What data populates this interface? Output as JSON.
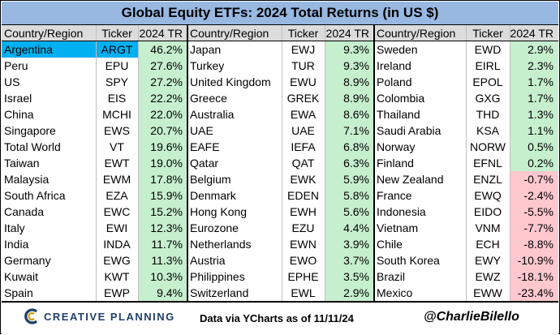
{
  "title": "Global Equity ETFs: 2024 Total Returns (in US $)",
  "headers": {
    "country": "Country/Region",
    "ticker": "Ticker",
    "tr": "2024 TR"
  },
  "footer": {
    "brand": "CREATIVE PLANNING",
    "source": "Data via YCharts as of 11/11/24",
    "handle": "@CharlieBilello"
  },
  "colors": {
    "positive_fill": "#c6efce",
    "negative_fill": "#ffc7ce",
    "highlight_fill": "#00b0f0",
    "title_fill": "#98b8e2"
  },
  "chart_data": {
    "type": "table",
    "columns": [
      "Country/Region",
      "Ticker",
      "2024 TR"
    ],
    "highlighted_row": "Argentina",
    "groups": [
      {
        "rows": [
          {
            "country": "Argentina",
            "ticker": "ARGT",
            "tr": "46.2%",
            "value": 46.2
          },
          {
            "country": "Peru",
            "ticker": "EPU",
            "tr": "27.6%",
            "value": 27.6
          },
          {
            "country": "US",
            "ticker": "SPY",
            "tr": "27.2%",
            "value": 27.2
          },
          {
            "country": "Israel",
            "ticker": "EIS",
            "tr": "22.2%",
            "value": 22.2
          },
          {
            "country": "China",
            "ticker": "MCHI",
            "tr": "22.0%",
            "value": 22.0
          },
          {
            "country": "Singapore",
            "ticker": "EWS",
            "tr": "20.7%",
            "value": 20.7
          },
          {
            "country": "Total World",
            "ticker": "VT",
            "tr": "19.6%",
            "value": 19.6
          },
          {
            "country": "Taiwan",
            "ticker": "EWT",
            "tr": "19.0%",
            "value": 19.0
          },
          {
            "country": "Malaysia",
            "ticker": "EWM",
            "tr": "17.8%",
            "value": 17.8
          },
          {
            "country": "South Africa",
            "ticker": "EZA",
            "tr": "15.9%",
            "value": 15.9
          },
          {
            "country": "Canada",
            "ticker": "EWC",
            "tr": "15.2%",
            "value": 15.2
          },
          {
            "country": "Italy",
            "ticker": "EWI",
            "tr": "12.3%",
            "value": 12.3
          },
          {
            "country": "India",
            "ticker": "INDA",
            "tr": "11.7%",
            "value": 11.7
          },
          {
            "country": "Germany",
            "ticker": "EWG",
            "tr": "11.3%",
            "value": 11.3
          },
          {
            "country": "Kuwait",
            "ticker": "KWT",
            "tr": "10.3%",
            "value": 10.3
          },
          {
            "country": "Spain",
            "ticker": "EWP",
            "tr": "9.4%",
            "value": 9.4
          }
        ]
      },
      {
        "rows": [
          {
            "country": "Japan",
            "ticker": "EWJ",
            "tr": "9.3%",
            "value": 9.3
          },
          {
            "country": "Turkey",
            "ticker": "TUR",
            "tr": "9.3%",
            "value": 9.3
          },
          {
            "country": "United Kingdom",
            "ticker": "EWU",
            "tr": "8.9%",
            "value": 8.9
          },
          {
            "country": "Greece",
            "ticker": "GREK",
            "tr": "8.9%",
            "value": 8.9
          },
          {
            "country": "Australia",
            "ticker": "EWA",
            "tr": "8.6%",
            "value": 8.6
          },
          {
            "country": "UAE",
            "ticker": "UAE",
            "tr": "7.1%",
            "value": 7.1
          },
          {
            "country": "EAFE",
            "ticker": "IEFA",
            "tr": "6.8%",
            "value": 6.8
          },
          {
            "country": "Qatar",
            "ticker": "QAT",
            "tr": "6.3%",
            "value": 6.3
          },
          {
            "country": "Belgium",
            "ticker": "EWK",
            "tr": "5.9%",
            "value": 5.9
          },
          {
            "country": "Denmark",
            "ticker": "EDEN",
            "tr": "5.8%",
            "value": 5.8
          },
          {
            "country": "Hong Kong",
            "ticker": "EWH",
            "tr": "5.6%",
            "value": 5.6
          },
          {
            "country": "Eurozone",
            "ticker": "EZU",
            "tr": "4.4%",
            "value": 4.4
          },
          {
            "country": "Netherlands",
            "ticker": "EWN",
            "tr": "3.9%",
            "value": 3.9
          },
          {
            "country": "Austria",
            "ticker": "EWO",
            "tr": "3.7%",
            "value": 3.7
          },
          {
            "country": "Philippines",
            "ticker": "EPHE",
            "tr": "3.5%",
            "value": 3.5
          },
          {
            "country": "Switzerland",
            "ticker": "EWL",
            "tr": "2.9%",
            "value": 2.9
          }
        ]
      },
      {
        "rows": [
          {
            "country": "Sweden",
            "ticker": "EWD",
            "tr": "2.9%",
            "value": 2.9
          },
          {
            "country": "Ireland",
            "ticker": "EIRL",
            "tr": "2.3%",
            "value": 2.3
          },
          {
            "country": "Poland",
            "ticker": "EPOL",
            "tr": "1.7%",
            "value": 1.7
          },
          {
            "country": "Colombia",
            "ticker": "GXG",
            "tr": "1.7%",
            "value": 1.7
          },
          {
            "country": "Thailand",
            "ticker": "THD",
            "tr": "1.3%",
            "value": 1.3
          },
          {
            "country": "Saudi Arabia",
            "ticker": "KSA",
            "tr": "1.1%",
            "value": 1.1
          },
          {
            "country": "Norway",
            "ticker": "NORW",
            "tr": "0.5%",
            "value": 0.5
          },
          {
            "country": "Finland",
            "ticker": "EFNL",
            "tr": "0.2%",
            "value": 0.2
          },
          {
            "country": "New Zealand",
            "ticker": "ENZL",
            "tr": "-0.7%",
            "value": -0.7
          },
          {
            "country": "France",
            "ticker": "EWQ",
            "tr": "-2.4%",
            "value": -2.4
          },
          {
            "country": "Indonesia",
            "ticker": "EIDO",
            "tr": "-5.5%",
            "value": -5.5
          },
          {
            "country": "Vietnam",
            "ticker": "VNM",
            "tr": "-7.7%",
            "value": -7.7
          },
          {
            "country": "Chile",
            "ticker": "ECH",
            "tr": "-8.8%",
            "value": -8.8
          },
          {
            "country": "South Korea",
            "ticker": "EWY",
            "tr": "-10.9%",
            "value": -10.9
          },
          {
            "country": "Brazil",
            "ticker": "EWZ",
            "tr": "-18.1%",
            "value": -18.1
          },
          {
            "country": "Mexico",
            "ticker": "EWW",
            "tr": "-23.4%",
            "value": -23.4
          }
        ]
      }
    ]
  }
}
